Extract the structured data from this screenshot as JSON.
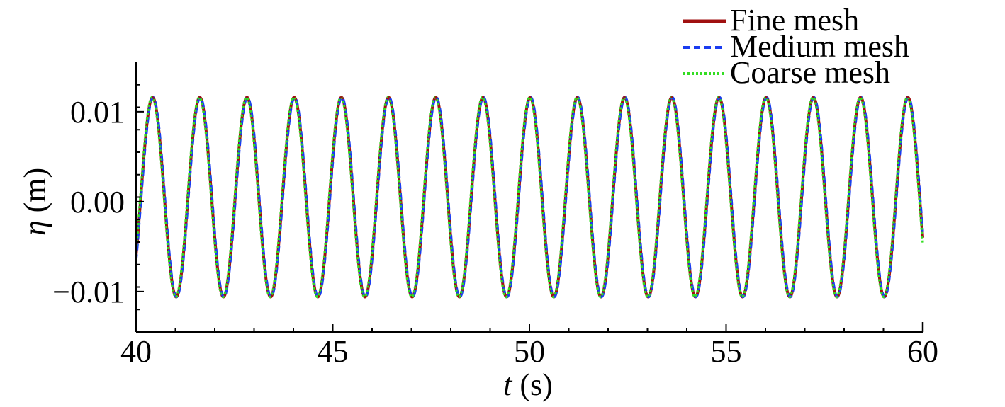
{
  "chart_data": {
    "type": "line",
    "title": "",
    "xlabel": {
      "var": "t",
      "unit": " (s)"
    },
    "ylabel": {
      "var": "η",
      "unit": " (m)"
    },
    "xlim": [
      40,
      60
    ],
    "ylim": [
      -0.0145,
      0.0155
    ],
    "xticks": [
      40,
      45,
      50,
      55,
      60
    ],
    "xtick_labels": [
      "40",
      "45",
      "50",
      "55",
      "60"
    ],
    "yticks": [
      -0.01,
      0.0,
      0.01
    ],
    "ytick_labels": [
      "−0.01",
      "0.00",
      "0.01"
    ],
    "grid": false,
    "legend_position": "top-right",
    "signal": {
      "form": "regular sinusoidal wave",
      "mean": 0.0005,
      "amplitude": 0.0111,
      "period": 1.2,
      "first_crest_t": 40.42,
      "t_range": [
        40,
        60
      ]
    },
    "crests_t": [
      40.42,
      41.62,
      42.82,
      44.02,
      45.22,
      46.42,
      47.62,
      48.82,
      50.02,
      51.22,
      52.42,
      53.62,
      54.82,
      56.02,
      57.22,
      58.42,
      59.62
    ],
    "crest_eta": 0.0116,
    "trough_eta": -0.0106,
    "series": [
      {
        "name": "Fine mesh",
        "color": "#a01010",
        "style": "solid"
      },
      {
        "name": "Medium mesh",
        "color": "#1a3cf0",
        "style": "dashed"
      },
      {
        "name": "Coarse mesh",
        "color": "#33dd22",
        "style": "dotted"
      }
    ]
  }
}
